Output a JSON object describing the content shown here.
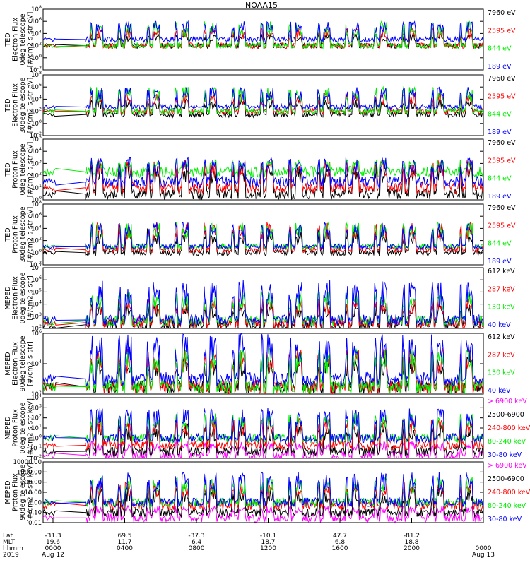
{
  "page": {
    "title": "NOAA15"
  },
  "colors": {
    "black": "#000000",
    "red": "#ff0000",
    "green": "#00ee00",
    "blue": "#0000ff",
    "magenta": "#ff00ff"
  },
  "chart_data": [
    {
      "type": "line",
      "ylabel": [
        "TED",
        "Electron Flux",
        "0deg telescope",
        "[#/cm2-s-str-eV]"
      ],
      "y_scale": "log",
      "yticks": [
        "10^8",
        "10^6",
        "10^4",
        "10^2",
        "10^0",
        "10^-2"
      ],
      "ylim": [
        0.01,
        100000000
      ],
      "series": [
        {
          "name": "7960 eV",
          "color": "#000000",
          "level": 100,
          "peak_level": 10000
        },
        {
          "name": "2595 eV",
          "color": "#ff0000",
          "level": 100,
          "peak_level": 100000
        },
        {
          "name": "844 eV",
          "color": "#00ee00",
          "level": 100,
          "peak_level": 1000000
        },
        {
          "name": "189 eV",
          "color": "#0000ff",
          "level": 1000,
          "peak_level": 1000000
        }
      ]
    },
    {
      "type": "line",
      "ylabel": [
        "TED",
        "Electron Flux",
        "30deg telescope",
        "[#/cm2-s-str-eV]"
      ],
      "y_scale": "log",
      "yticks": [
        "10^8",
        "10^6",
        "10^4",
        "10^2",
        "10^0",
        "10^-2"
      ],
      "ylim": [
        0.01,
        100000000
      ],
      "series": [
        {
          "name": "7960 eV",
          "color": "#000000",
          "level": 30,
          "peak_level": 10000
        },
        {
          "name": "2595 eV",
          "color": "#ff0000",
          "level": 100,
          "peak_level": 100000
        },
        {
          "name": "844 eV",
          "color": "#00ee00",
          "level": 100,
          "peak_level": 1000000
        },
        {
          "name": "189 eV",
          "color": "#0000ff",
          "level": 500,
          "peak_level": 1000000
        }
      ]
    },
    {
      "type": "line",
      "ylabel": [
        "TED",
        "Proton Flux",
        "0deg telescope",
        "[#/cm2-s-str-eV]"
      ],
      "y_scale": "log",
      "yticks": [
        "10^5",
        "10^4",
        "10^3",
        "10^2",
        "10^1",
        "10^0"
      ],
      "ylim": [
        1,
        100000
      ],
      "series": [
        {
          "name": "7960 eV",
          "color": "#000000",
          "level": 3,
          "peak_level": 1000
        },
        {
          "name": "2595 eV",
          "color": "#ff0000",
          "level": 10,
          "peak_level": 2000
        },
        {
          "name": "844 eV",
          "color": "#00ee00",
          "level": 200,
          "peak_level": 2000
        },
        {
          "name": "189 eV",
          "color": "#0000ff",
          "level": 30,
          "peak_level": 3000
        }
      ]
    },
    {
      "type": "line",
      "ylabel": [
        "TED",
        "Proton Flux",
        "30deg telescope",
        "[#/cm2-s-str-eV]"
      ],
      "y_scale": "log",
      "yticks": [
        "10^8",
        "10^6",
        "10^4",
        "10^2",
        "10^0",
        "10^-2"
      ],
      "ylim": [
        0.01,
        100000000
      ],
      "series": [
        {
          "name": "7960 eV",
          "color": "#000000",
          "level": 1,
          "peak_level": 10000
        },
        {
          "name": "2595 eV",
          "color": "#ff0000",
          "level": 3,
          "peak_level": 100000
        },
        {
          "name": "844 eV",
          "color": "#00ee00",
          "level": 10,
          "peak_level": 100000
        },
        {
          "name": "189 eV",
          "color": "#0000ff",
          "level": 10,
          "peak_level": 100000
        }
      ]
    },
    {
      "type": "line",
      "ylabel": [
        "MEPED",
        "Electron Flux",
        "0deg telescope",
        "[#/cm2-s-str]"
      ],
      "y_scale": "log",
      "yticks": [
        "10^7",
        "10^6",
        "10^5",
        "10^4",
        "10^3",
        "10^2"
      ],
      "ylim": [
        100,
        10000000
      ],
      "series": [
        {
          "name": "612 keV",
          "color": "#000000",
          "level": 200,
          "peak_level": 10000
        },
        {
          "name": "287 keV",
          "color": "#ff0000",
          "level": 300,
          "peak_level": 30000
        },
        {
          "name": "130 keV",
          "color": "#00ee00",
          "level": 400,
          "peak_level": 100000
        },
        {
          "name": "40 keV",
          "color": "#0000ff",
          "level": 500,
          "peak_level": 1000000
        }
      ]
    },
    {
      "type": "line",
      "ylabel": [
        "MEPED",
        "Electron Flux",
        "90deg telescope",
        "[#/cm2-s-str]"
      ],
      "y_scale": "log",
      "yticks": [
        "10^6",
        "10^4",
        "10^2"
      ],
      "ylim": [
        100,
        1000000
      ],
      "series": [
        {
          "name": "612 keV",
          "color": "#000000",
          "level": 300,
          "peak_level": 30000
        },
        {
          "name": "287 keV",
          "color": "#ff0000",
          "level": 300,
          "peak_level": 100000
        },
        {
          "name": "130 keV",
          "color": "#00ee00",
          "level": 300,
          "peak_level": 100000
        },
        {
          "name": "40 keV",
          "color": "#0000ff",
          "level": 1000,
          "peak_level": 1000000
        }
      ]
    },
    {
      "type": "line",
      "ylabel": [
        "MEPED",
        "Proton Flux",
        "0deg telescope",
        "[#/cm2-s-str-keV]"
      ],
      "y_scale": "log",
      "yticks": [
        "10^4",
        "10^3",
        "10^2",
        "10^1",
        "10^0",
        "10^-1",
        "10^-2"
      ],
      "ylim": [
        0.01,
        10000
      ],
      "series": [
        {
          "name": "> 6900 keV",
          "color": "#ff00ff",
          "level": 0.02,
          "peak_level": 0.5
        },
        {
          "name": "2500-6900",
          "color": "#000000",
          "level": 0.05,
          "peak_level": 30
        },
        {
          "name": "240-800 keV",
          "color": "#ff0000",
          "level": 0.2,
          "peak_level": 100
        },
        {
          "name": "80-240 keV",
          "color": "#00ee00",
          "level": 1,
          "peak_level": 300
        },
        {
          "name": "30-80 keV",
          "color": "#0000ff",
          "level": 1,
          "peak_level": 1000
        }
      ]
    },
    {
      "type": "line",
      "ylabel": [
        "MEPED",
        "Proton Flux",
        "90deg telescope",
        "[#/cm2-s-str-keV]"
      ],
      "y_scale": "log",
      "yticks": [
        "10000.00",
        "1000.00",
        "100.00",
        "10.00",
        "1.00",
        "0.10",
        "0.01"
      ],
      "ylim": [
        0.01,
        10000
      ],
      "series": [
        {
          "name": "> 6900 keV",
          "color": "#ff00ff",
          "level": 0.03,
          "peak_level": 0.5
        },
        {
          "name": "2500-6900",
          "color": "#000000",
          "level": 0.1,
          "peak_level": 30
        },
        {
          "name": "240-800 keV",
          "color": "#ff0000",
          "level": 0.5,
          "peak_level": 100
        },
        {
          "name": "80-240 keV",
          "color": "#00ee00",
          "level": 1,
          "peak_level": 300
        },
        {
          "name": "30-80 keV",
          "color": "#0000ff",
          "level": 1,
          "peak_level": 1000
        }
      ]
    }
  ],
  "x_axis": {
    "row_labels": [
      "Lat",
      "MLT",
      "hhmm",
      "2019"
    ],
    "ticks": [
      {
        "lat": "-31.3",
        "mlt": "19.6",
        "hhmm": "0000",
        "date": "Aug 12"
      },
      {
        "lat": "69.5",
        "mlt": "11.7",
        "hhmm": "0400",
        "date": ""
      },
      {
        "lat": "-37.3",
        "mlt": "6.4",
        "hhmm": "0800",
        "date": ""
      },
      {
        "lat": "-10.1",
        "mlt": "18.7",
        "hhmm": "1200",
        "date": ""
      },
      {
        "lat": "47.7",
        "mlt": "6.8",
        "hhmm": "1600",
        "date": ""
      },
      {
        "lat": "-81.2",
        "mlt": "18.8",
        "hhmm": "2000",
        "date": ""
      },
      {
        "lat": "",
        "mlt": "",
        "hhmm": "0000",
        "date": "Aug 13"
      }
    ]
  }
}
